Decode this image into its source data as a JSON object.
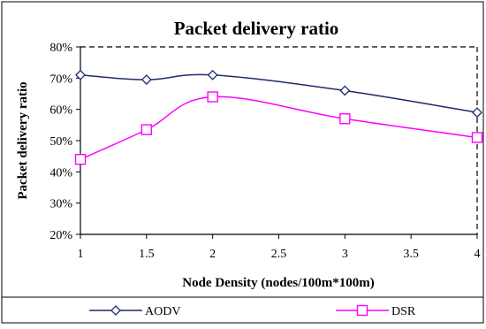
{
  "chart_data": {
    "type": "line",
    "title": "Packet delivery ratio",
    "xlabel": "Node Density (nodes/100m*100m)",
    "ylabel": "Packet delivery ratio",
    "x": [
      1,
      1.5,
      2,
      3,
      4
    ],
    "xlim": [
      1,
      4
    ],
    "xticks": [
      "1",
      "1.5",
      "2",
      "2.5",
      "3",
      "3.5",
      "4"
    ],
    "ylim": [
      20,
      80
    ],
    "yticks": [
      "20%",
      "30%",
      "40%",
      "50%",
      "60%",
      "70%",
      "80%"
    ],
    "grid": false,
    "legend_position": "bottom",
    "series": [
      {
        "name": "AODV",
        "values": [
          71,
          69.5,
          71,
          66,
          59
        ],
        "color": "#1f2a6e",
        "marker": "diamond"
      },
      {
        "name": "DSR",
        "values": [
          44,
          53.5,
          64,
          57,
          51
        ],
        "color": "#ff00ff",
        "marker": "square"
      }
    ]
  }
}
